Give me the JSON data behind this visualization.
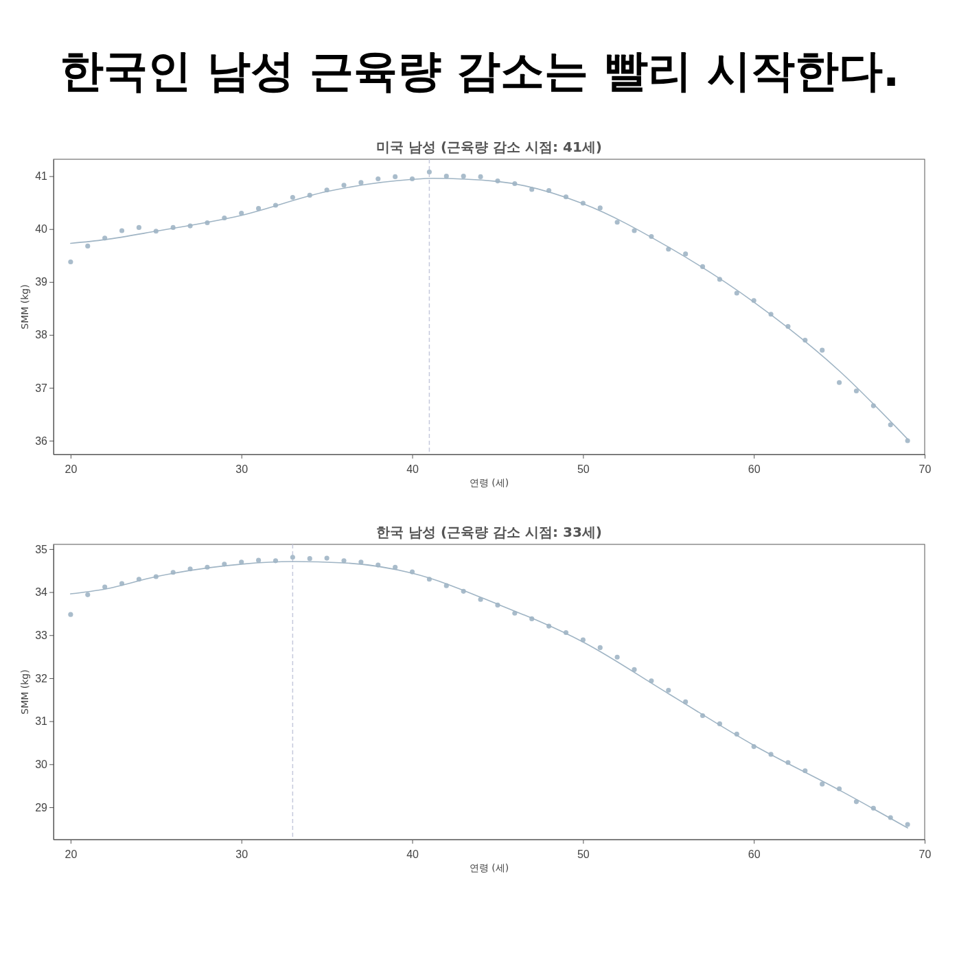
{
  "chart_data": [
    {
      "type": "scatter",
      "title": "한국인 남성 근육량 감소는 빨리 시작한다.",
      "subtitle": "미국 남성 (근육량 감소 시점: 41세)",
      "xlabel": "연령 (세)",
      "ylabel": "SMM (kg)",
      "xlim": [
        19,
        70
      ],
      "xticks": [
        20,
        30,
        40,
        50,
        60,
        70
      ],
      "ylim": [
        35.74,
        41.32
      ],
      "yticks": [
        36,
        37,
        38,
        39,
        40,
        41
      ],
      "grid": false,
      "marker": "circle",
      "ref_lines": [
        {
          "axis": "x",
          "value": 41,
          "color": "#c5c9dc",
          "line_style": "dashed"
        }
      ],
      "series": [
        {
          "color": "#a9bccb",
          "x": [
            20,
            21,
            22,
            23,
            24,
            25,
            26,
            27,
            28,
            29,
            30,
            31,
            32,
            33,
            34,
            35,
            36,
            37,
            38,
            39,
            40,
            41,
            42,
            43,
            44,
            45,
            46,
            47,
            48,
            49,
            50,
            51,
            52,
            53,
            54,
            55,
            56,
            57,
            58,
            59,
            60,
            61,
            62,
            63,
            64,
            65,
            66,
            67,
            68,
            69
          ],
          "values": [
            39.38,
            39.68,
            39.83,
            39.97,
            40.03,
            39.96,
            40.03,
            40.06,
            40.12,
            40.21,
            40.3,
            40.39,
            40.45,
            40.6,
            40.64,
            40.74,
            40.83,
            40.88,
            40.95,
            40.99,
            40.95,
            41.08,
            41.0,
            41.0,
            40.99,
            40.91,
            40.86,
            40.75,
            40.73,
            40.61,
            40.49,
            40.4,
            40.13,
            39.97,
            39.86,
            39.62,
            39.53,
            39.29,
            39.05,
            38.79,
            38.65,
            38.39,
            38.16,
            37.9,
            37.71,
            37.1,
            36.94,
            36.66,
            36.3,
            36.0
          ]
        },
        {
          "type": "line",
          "color": "#9fb4c4",
          "line_style": "solid",
          "marker": "none",
          "x": [
            20,
            22,
            25,
            30,
            35,
            40,
            41.2,
            45,
            50,
            55,
            60,
            65,
            69
          ],
          "values": [
            39.73,
            39.8,
            39.96,
            40.26,
            40.71,
            40.94,
            40.96,
            40.9,
            40.48,
            39.66,
            38.62,
            37.32,
            36.03
          ]
        }
      ]
    },
    {
      "type": "scatter",
      "subtitle": "한국 남성 (근육량 감소 시점: 33세)",
      "xlabel": "연령 (세)",
      "ylabel": "SMM (kg)",
      "xlim": [
        19,
        70
      ],
      "xticks": [
        20,
        30,
        40,
        50,
        60,
        70
      ],
      "ylim": [
        28.25,
        35.11
      ],
      "yticks": [
        29,
        30,
        31,
        32,
        33,
        34,
        35
      ],
      "grid": false,
      "marker": "circle",
      "ref_lines": [
        {
          "axis": "x",
          "value": 33,
          "color": "#c5c9dc",
          "line_style": "dashed"
        }
      ],
      "series": [
        {
          "color": "#a9bccb",
          "x": [
            20,
            21,
            22,
            23,
            24,
            25,
            26,
            27,
            28,
            29,
            30,
            31,
            32,
            33,
            34,
            35,
            36,
            37,
            38,
            39,
            40,
            41,
            42,
            43,
            44,
            45,
            46,
            47,
            48,
            49,
            50,
            51,
            52,
            53,
            54,
            55,
            56,
            57,
            58,
            59,
            60,
            61,
            62,
            63,
            64,
            65,
            66,
            67,
            68,
            69
          ],
          "values": [
            33.48,
            33.94,
            34.12,
            34.2,
            34.3,
            34.36,
            34.46,
            34.54,
            34.58,
            34.65,
            34.7,
            34.74,
            34.73,
            34.81,
            34.78,
            34.79,
            34.73,
            34.7,
            34.63,
            34.58,
            34.47,
            34.3,
            34.15,
            34.02,
            33.83,
            33.7,
            33.51,
            33.38,
            33.21,
            33.06,
            32.89,
            32.71,
            32.49,
            32.2,
            31.94,
            31.72,
            31.45,
            31.13,
            30.94,
            30.7,
            30.41,
            30.23,
            30.04,
            29.85,
            29.54,
            29.43,
            29.13,
            28.98,
            28.76,
            28.6
          ]
        },
        {
          "type": "line",
          "color": "#9fb4c4",
          "line_style": "solid",
          "marker": "none",
          "x": [
            20,
            22,
            25,
            30,
            33,
            36,
            40,
            45,
            50,
            55,
            60,
            65,
            69
          ],
          "values": [
            33.96,
            34.07,
            34.36,
            34.65,
            34.71,
            34.68,
            34.44,
            33.72,
            32.84,
            31.64,
            30.44,
            29.4,
            28.52
          ]
        }
      ]
    }
  ]
}
